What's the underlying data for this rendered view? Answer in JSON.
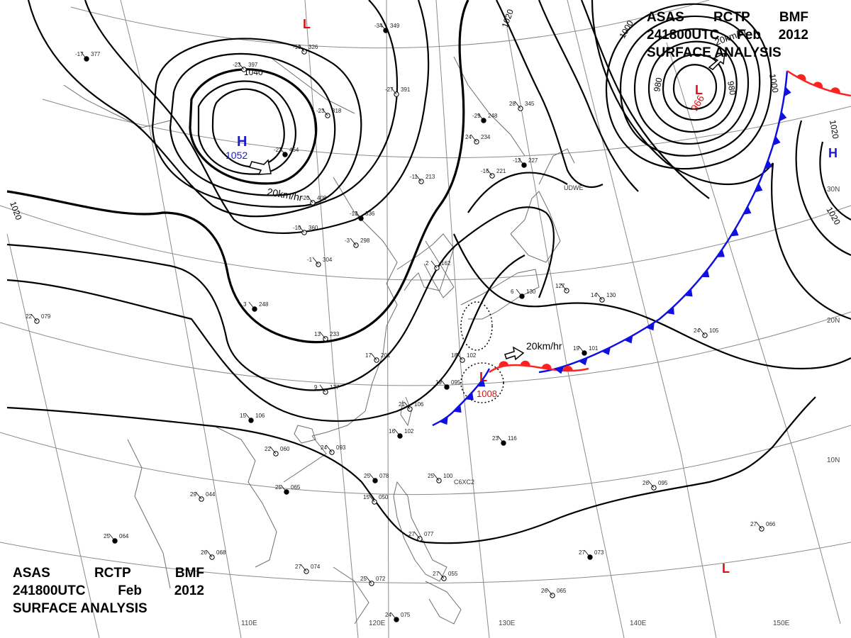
{
  "header": {
    "agency": "ASAS",
    "station": "RCTP",
    "office": "BMF",
    "valid_time": "241800UTC",
    "month": "Feb",
    "year": "2012",
    "product": "SURFACE ANALYSIS"
  },
  "colors": {
    "isobar": "#000000",
    "grid": "#8a8a8a",
    "coast": "#777777",
    "high": "#1a1ad0",
    "low": "#e01010",
    "cold_front": "#1010e0",
    "warm_front": "#ff2020"
  },
  "longitude_labels": [
    "110E",
    "120E",
    "130E",
    "140E",
    "150E"
  ],
  "latitude_labels": [
    "30N",
    "20N",
    "10N"
  ],
  "pressure_systems": [
    {
      "type": "H",
      "value": "1052",
      "motion": "20km/hr"
    },
    {
      "type": "L",
      "value": "966",
      "motion": "20km/hr"
    },
    {
      "type": "L",
      "value": "1008",
      "motion": "20km/hr"
    },
    {
      "type": "H",
      "value": ""
    },
    {
      "type": "L",
      "value": ""
    },
    {
      "type": "L",
      "value": ""
    }
  ],
  "isobar_labels": [
    "1040",
    "1020",
    "1020",
    "1020",
    "1020",
    "1000",
    "1000",
    "980",
    "980"
  ],
  "station_codes": [
    "UDWE",
    "C6XC2"
  ],
  "station_plots": [
    {
      "t": "-17",
      "p": "377"
    },
    {
      "t": "-19",
      "p": "326"
    },
    {
      "t": "-23",
      "p": "397"
    },
    {
      "t": "-34",
      "p": "349"
    },
    {
      "t": "-27",
      "p": "391"
    },
    {
      "t": "-23",
      "p": "318"
    },
    {
      "t": "-21",
      "p": "454"
    },
    {
      "t": "-20",
      "p": "408"
    },
    {
      "t": "-10",
      "p": "360"
    },
    {
      "t": "-13",
      "p": "336"
    },
    {
      "t": "-1",
      "p": "304"
    },
    {
      "t": "-11",
      "p": "213"
    },
    {
      "t": "-29",
      "p": "248"
    },
    {
      "t": "24",
      "p": "234"
    },
    {
      "t": "-16",
      "p": "221"
    },
    {
      "t": "-12",
      "p": "227"
    },
    {
      "t": "28",
      "p": "345"
    },
    {
      "t": "2",
      "p": "162"
    },
    {
      "t": "6",
      "p": "130"
    },
    {
      "t": "127",
      "p": ""
    },
    {
      "t": "14",
      "p": "130"
    },
    {
      "t": "19",
      "p": "101"
    },
    {
      "t": "24",
      "p": "105"
    },
    {
      "t": "22",
      "p": "079"
    },
    {
      "t": "15",
      "p": "106"
    },
    {
      "t": "22",
      "p": "060"
    },
    {
      "t": "24",
      "p": "093"
    },
    {
      "t": "25",
      "p": "078"
    },
    {
      "t": "25",
      "p": "100"
    },
    {
      "t": "15",
      "p": "050"
    },
    {
      "t": "25",
      "p": "065"
    },
    {
      "t": "29",
      "p": "044"
    },
    {
      "t": "26",
      "p": "068"
    },
    {
      "t": "25",
      "p": "064"
    },
    {
      "t": "27",
      "p": "074"
    },
    {
      "t": "25",
      "p": "072"
    },
    {
      "t": "24",
      "p": "075"
    },
    {
      "t": "27",
      "p": "077"
    },
    {
      "t": "27",
      "p": "055"
    },
    {
      "t": "23",
      "p": "116"
    },
    {
      "t": "26",
      "p": "095"
    },
    {
      "t": "27",
      "p": "066"
    },
    {
      "t": "27",
      "p": "073"
    },
    {
      "t": "26",
      "p": "065"
    },
    {
      "t": "21",
      "p": "106"
    },
    {
      "t": "16",
      "p": "102"
    },
    {
      "t": "9",
      "p": "177"
    },
    {
      "t": "18",
      "p": "102"
    },
    {
      "t": "19",
      "p": "095"
    },
    {
      "t": "17",
      "p": "201"
    },
    {
      "t": "13",
      "p": "233"
    },
    {
      "t": "3",
      "p": "248"
    },
    {
      "t": "-3",
      "p": "298"
    }
  ]
}
